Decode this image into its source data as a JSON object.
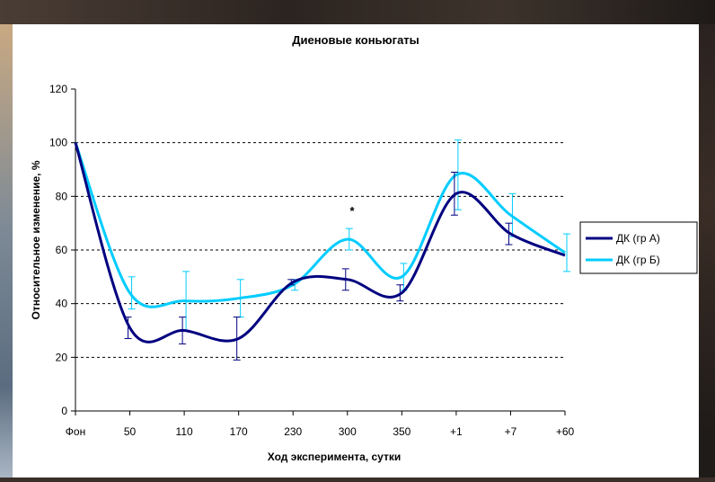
{
  "chart_data": {
    "type": "line",
    "title": "Диеновые коньюгаты",
    "xlabel": "Ход эксперимента, сутки",
    "ylabel": "Относительное изменение, %",
    "categories": [
      "Фон",
      "50",
      "110",
      "170",
      "230",
      "300",
      "350",
      "+1",
      "+7",
      "+60"
    ],
    "ylim": [
      0,
      120
    ],
    "yticks": [
      "0",
      "20",
      "40",
      "60",
      "80",
      "100",
      "120"
    ],
    "grid": "horizontal dashed",
    "legend_position": "right",
    "annotation": "*",
    "series": [
      {
        "name": "ДК (гр А)",
        "color": "#000080",
        "values": [
          100,
          31,
          30,
          27,
          48,
          49,
          44,
          81,
          66,
          58
        ],
        "errors": [
          0,
          4,
          5,
          8,
          1,
          4,
          3,
          8,
          4,
          0
        ]
      },
      {
        "name": "ДК (гр Б)",
        "color": "#00ccff",
        "values": [
          100,
          44,
          41,
          42,
          47,
          64,
          50,
          88,
          73,
          59
        ],
        "errors": [
          0,
          6,
          11,
          7,
          2,
          4,
          5,
          13,
          8,
          7
        ]
      }
    ]
  }
}
